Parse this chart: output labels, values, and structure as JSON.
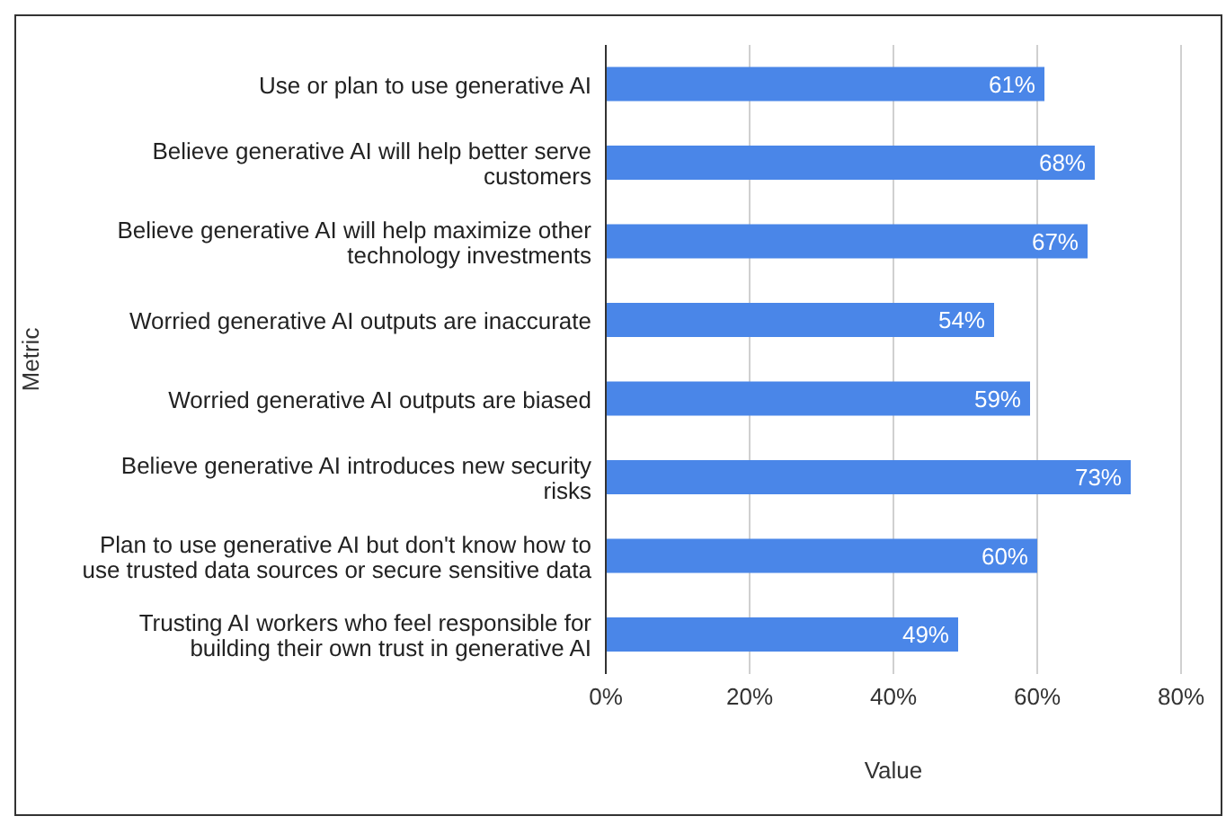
{
  "chart_data": {
    "type": "bar",
    "orientation": "horizontal",
    "xlabel": "Value",
    "ylabel": "Metric",
    "categories": [
      "Use or plan to use generative AI",
      "Believe generative AI will help better serve customers",
      "Believe generative AI will help maximize other technology investments",
      "Worried generative AI outputs are inaccurate",
      "Worried generative AI outputs are biased",
      "Believe generative AI introduces new security risks",
      "Plan to use generative AI but don't know how to use trusted data sources or secure sensitive data",
      "Trusting AI workers who feel responsible for building their own trust in generative AI"
    ],
    "values": [
      61,
      68,
      67,
      54,
      59,
      73,
      60,
      49
    ],
    "value_labels": [
      "61%",
      "68%",
      "67%",
      "54%",
      "59%",
      "73%",
      "60%",
      "49%"
    ],
    "color": "#4a86e8",
    "xlim": [
      0,
      80
    ],
    "xticks": [
      {
        "value": 0,
        "label": "0%"
      },
      {
        "value": 20,
        "label": "20%"
      },
      {
        "value": 40,
        "label": "40%"
      },
      {
        "value": 60,
        "label": "60%"
      },
      {
        "value": 80,
        "label": "80%"
      }
    ],
    "grid": "x"
  }
}
